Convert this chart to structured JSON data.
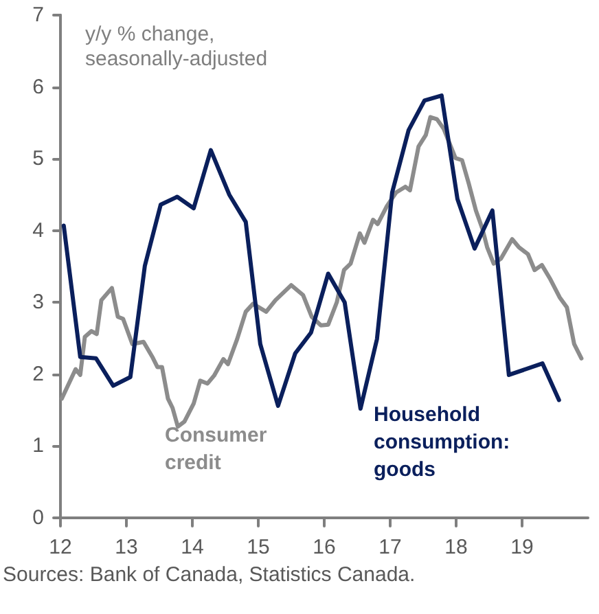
{
  "chart_data": {
    "type": "line",
    "annotations": [
      "y/y % change, seasonally-adjusted",
      "Sources: Bank of Canada, Statistics Canada."
    ],
    "xlim": [
      12,
      20
    ],
    "xticks": [
      12,
      13,
      14,
      15,
      16,
      17,
      18,
      19
    ],
    "ylim": [
      0,
      7
    ],
    "yticks": [
      0,
      1,
      2,
      3,
      4,
      5,
      6,
      7
    ],
    "grid": false,
    "legend": false,
    "marker": "none",
    "line_style": "solid",
    "series": [
      {
        "name": "Consumer credit",
        "color": "#8c8c8c",
        "x": [
          12.02,
          12.23,
          12.3,
          12.37,
          12.47,
          12.55,
          12.62,
          12.78,
          12.87,
          12.95,
          13.09,
          13.26,
          13.4,
          13.47,
          13.54,
          13.63,
          13.7,
          13.78,
          13.88,
          14.02,
          14.12,
          14.23,
          14.33,
          14.47,
          14.54,
          14.68,
          14.81,
          14.92,
          15.12,
          15.26,
          15.5,
          15.68,
          15.81,
          15.95,
          16.06,
          16.19,
          16.3,
          16.4,
          16.54,
          16.61,
          16.74,
          16.81,
          16.95,
          17.09,
          17.23,
          17.3,
          17.43,
          17.54,
          17.61,
          17.71,
          17.81,
          17.99,
          18.09,
          18.19,
          18.3,
          18.4,
          18.47,
          18.57,
          18.68,
          18.85,
          18.95,
          19.09,
          19.19,
          19.3,
          19.43,
          19.57,
          19.68,
          19.79,
          19.9
        ],
        "values": [
          1.66,
          2.07,
          1.99,
          2.52,
          2.6,
          2.56,
          3.03,
          3.2,
          2.8,
          2.77,
          2.42,
          2.45,
          2.23,
          2.1,
          2.1,
          1.66,
          1.53,
          1.27,
          1.34,
          1.59,
          1.91,
          1.87,
          1.98,
          2.21,
          2.14,
          2.49,
          2.87,
          2.98,
          2.87,
          3.03,
          3.24,
          3.1,
          2.8,
          2.68,
          2.69,
          3,
          3.45,
          3.54,
          3.96,
          3.83,
          4.15,
          4.09,
          4.34,
          4.53,
          4.61,
          4.56,
          5.17,
          5.33,
          5.58,
          5.55,
          5.42,
          5.01,
          4.98,
          4.66,
          4.28,
          4.02,
          3.77,
          3.54,
          3.61,
          3.88,
          3.77,
          3.67,
          3.45,
          3.52,
          3.32,
          3.07,
          2.93,
          2.42,
          2.22
        ]
      },
      {
        "name": "Household consumption: goods",
        "color": "#0a1f5c",
        "x": [
          12.05,
          12.3,
          12.54,
          12.8,
          13.06,
          13.28,
          13.52,
          13.77,
          14.02,
          14.28,
          14.56,
          14.81,
          15.03,
          15.3,
          15.56,
          15.8,
          16.06,
          16.31,
          16.55,
          16.8,
          17.03,
          17.28,
          17.52,
          17.78,
          18.02,
          18.28,
          18.55,
          18.8,
          19.31,
          19.56
        ],
        "values": [
          4.07,
          2.24,
          2.22,
          1.84,
          1.96,
          3.51,
          4.36,
          4.47,
          4.31,
          5.12,
          4.5,
          4.12,
          2.42,
          1.56,
          2.29,
          2.58,
          3.4,
          3,
          1.52,
          2.49,
          4.53,
          5.4,
          5.81,
          5.88,
          4.44,
          3.75,
          4.28,
          1.99,
          2.15,
          1.64
        ]
      }
    ]
  }
}
